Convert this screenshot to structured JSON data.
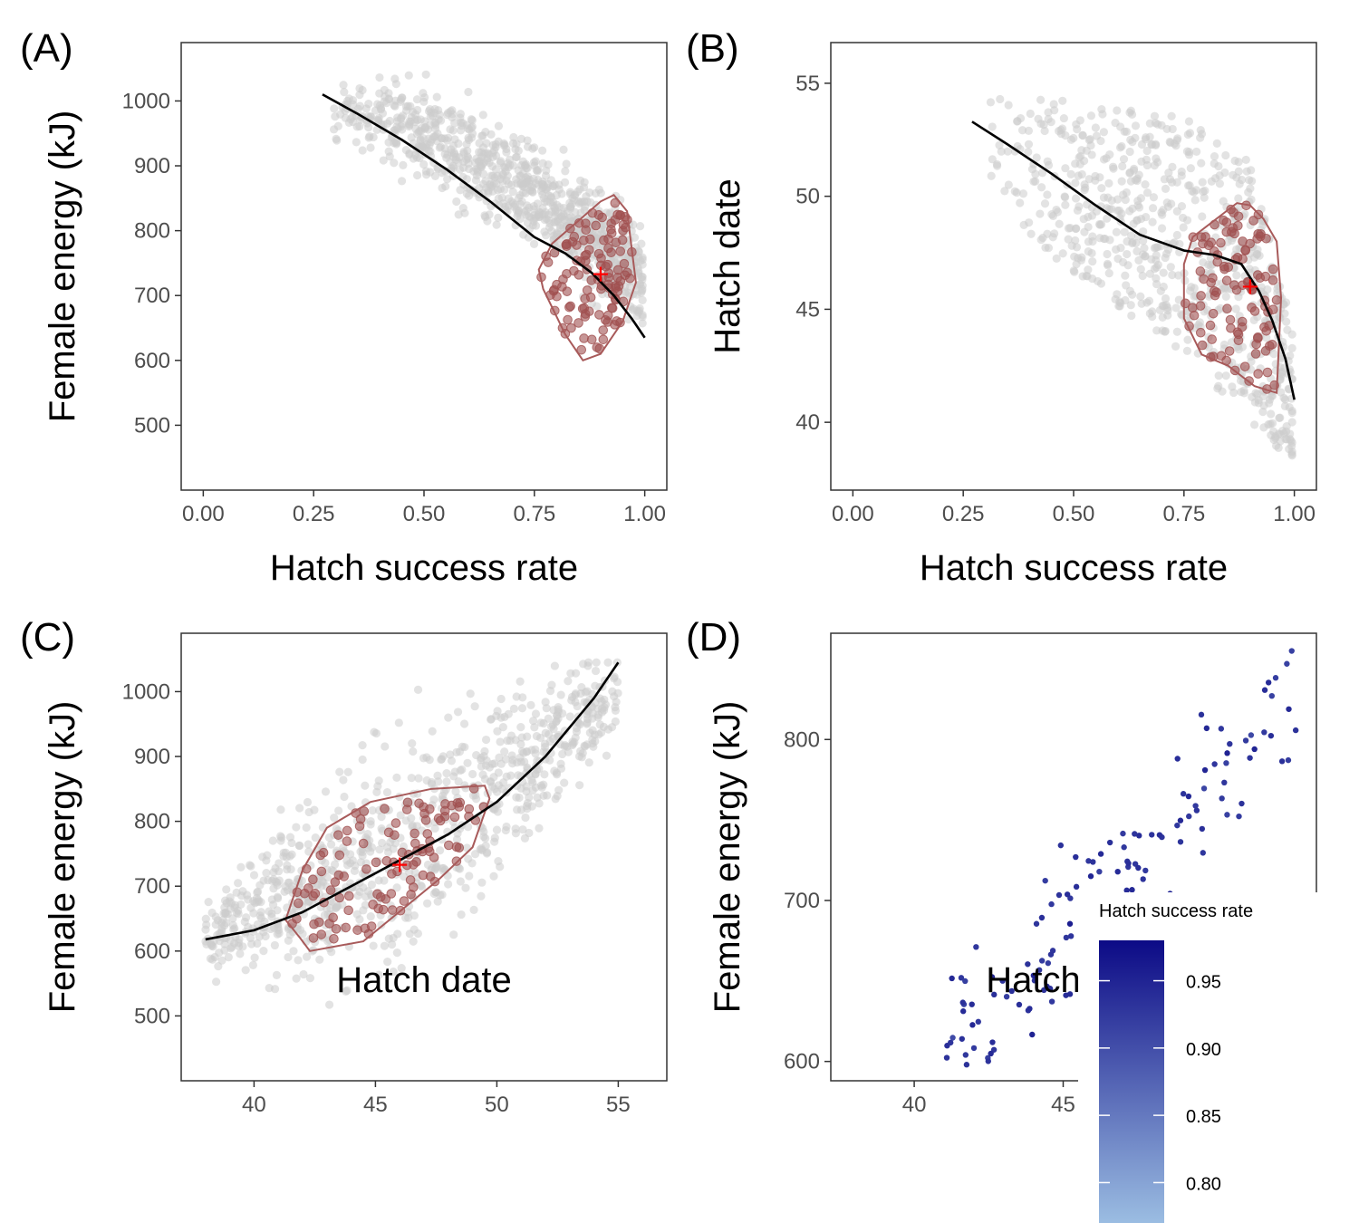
{
  "figure": {
    "colors": {
      "background_points": "#cccccc",
      "subset_points": "#a05050",
      "hull": "#a85a5a",
      "smooth": "#000000",
      "optimum_marker": "#ff0000",
      "gradient_low": "#9bbde2",
      "gradient_high": "#0c0a86"
    }
  },
  "chart_data": [
    {
      "type": "scatter",
      "panel_label": "(A)",
      "xlabel": "Hatch success rate",
      "ylabel": "Female energy (kJ)",
      "xlim": [
        -0.05,
        1.05
      ],
      "ylim": [
        400,
        1090
      ],
      "xticks": [
        0.0,
        0.25,
        0.5,
        0.75,
        1.0
      ],
      "xtick_labels": [
        "0.00",
        "0.25",
        "0.50",
        "0.75",
        "1.00"
      ],
      "yticks": [
        500,
        600,
        700,
        800,
        900,
        1000
      ],
      "ytick_labels": [
        "500",
        "600",
        "700",
        "800",
        "900",
        "1000"
      ],
      "smooth_curve": {
        "x": [
          0.27,
          0.35,
          0.45,
          0.55,
          0.65,
          0.75,
          0.82,
          0.88,
          0.93,
          0.97,
          1.0
        ],
        "y": [
          1010,
          980,
          940,
          895,
          845,
          790,
          765,
          735,
          700,
          665,
          635
        ]
      },
      "hull": {
        "x": [
          0.79,
          0.9,
          0.93,
          0.96,
          0.98,
          0.95,
          0.9,
          0.86,
          0.82,
          0.77,
          0.76
        ],
        "y": [
          780,
          845,
          855,
          830,
          720,
          660,
          610,
          600,
          640,
          710,
          740
        ]
      },
      "optimum": {
        "x": 0.9,
        "y": 733
      },
      "highlight_count": 120,
      "background_count": 900
    },
    {
      "type": "scatter",
      "panel_label": "(B)",
      "xlabel": "Hatch success rate",
      "ylabel": "Hatch date",
      "xlim": [
        -0.05,
        1.05
      ],
      "ylim": [
        37,
        56.8
      ],
      "xticks": [
        0.0,
        0.25,
        0.5,
        0.75,
        1.0
      ],
      "xtick_labels": [
        "0.00",
        "0.25",
        "0.50",
        "0.75",
        "1.00"
      ],
      "yticks": [
        40,
        45,
        50,
        55
      ],
      "ytick_labels": [
        "40",
        "45",
        "50",
        "55"
      ],
      "smooth_curve": {
        "x": [
          0.27,
          0.35,
          0.45,
          0.55,
          0.65,
          0.75,
          0.82,
          0.88,
          0.92,
          0.95,
          0.98,
          1.0
        ],
        "y": [
          53.3,
          52.3,
          51.0,
          49.6,
          48.3,
          47.6,
          47.4,
          47.0,
          45.8,
          44.5,
          42.8,
          41.0
        ]
      },
      "hull": {
        "x": [
          0.77,
          0.87,
          0.9,
          0.93,
          0.96,
          0.97,
          0.96,
          0.91,
          0.85,
          0.79,
          0.75,
          0.75
        ],
        "y": [
          48.2,
          49.7,
          49.6,
          49.0,
          48.0,
          45.5,
          41.3,
          41.6,
          42.5,
          43.0,
          44.6,
          47.0
        ]
      },
      "optimum": {
        "x": 0.9,
        "y": 46.0
      },
      "highlight_count": 110,
      "background_count": 750
    },
    {
      "type": "scatter",
      "panel_label": "(C)",
      "xlabel": "Hatch date",
      "ylabel": "Female energy (kJ)",
      "xlim": [
        37,
        57
      ],
      "ylim": [
        400,
        1090
      ],
      "xticks": [
        40,
        45,
        50,
        55
      ],
      "xtick_labels": [
        "40",
        "45",
        "50",
        "55"
      ],
      "yticks": [
        500,
        600,
        700,
        800,
        900,
        1000
      ],
      "ytick_labels": [
        "500",
        "600",
        "700",
        "800",
        "900",
        "1000"
      ],
      "smooth_curve": {
        "x": [
          38,
          40,
          42,
          44,
          46,
          48,
          50,
          52,
          54,
          55
        ],
        "y": [
          618,
          632,
          660,
          700,
          740,
          780,
          830,
          900,
          990,
          1045
        ]
      },
      "hull": {
        "x": [
          41.3,
          42.0,
          43.0,
          44.8,
          47.3,
          49.5,
          49.7,
          49.0,
          47.6,
          44.5,
          42.3,
          41.9
        ],
        "y": [
          648,
          725,
          790,
          830,
          850,
          855,
          835,
          760,
          710,
          615,
          600,
          620
        ]
      },
      "optimum": {
        "x": 46.0,
        "y": 733
      },
      "highlight_count": 110,
      "background_count": 900
    },
    {
      "type": "scatter",
      "panel_label": "(D)",
      "xlabel": "Hatch date",
      "ylabel": "Female energy (kJ)",
      "xlim": [
        37.2,
        53.5
      ],
      "ylim": [
        588,
        866
      ],
      "xticks": [
        40,
        45
      ],
      "xtick_labels": [
        "40",
        "45"
      ],
      "yticks": [
        600,
        700,
        800
      ],
      "ytick_labels": [
        "600",
        "700",
        "800"
      ],
      "points_count": 140,
      "legend": {
        "title": "Hatch success rate",
        "placement": "bottom-right",
        "range": [
          0.77,
          0.98
        ],
        "ticks": [
          0.8,
          0.85,
          0.9,
          0.95
        ],
        "tick_labels": [
          "0.80",
          "0.85",
          "0.90",
          "0.95"
        ]
      }
    }
  ]
}
